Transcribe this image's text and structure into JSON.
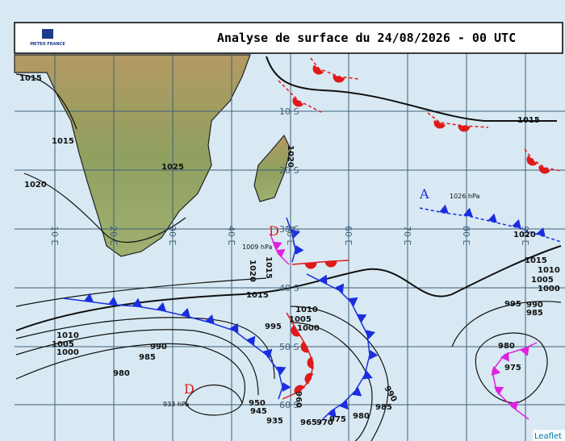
{
  "header": {
    "title": "Analyse de surface du 24/08/2026 - 00 UTC",
    "logo": "METEO FRANCE"
  },
  "grid": {
    "latitudes": [
      "10 S",
      "20 S",
      "30 S",
      "40 S",
      "50 S",
      "60 S"
    ],
    "longitudes": [
      "10 E",
      "20 E",
      "30 E",
      "40 E",
      "50 E",
      "60 E",
      "70 E",
      "80 E",
      "90 E"
    ]
  },
  "isobar_labels": [
    "1015",
    "1015",
    "1020",
    "1025",
    "1020",
    "1015",
    "1020",
    "1015",
    "1010",
    "1005",
    "1000",
    "1015",
    "1010",
    "1005",
    "1000",
    "995",
    "1010",
    "1005",
    "1000",
    "990",
    "985",
    "980",
    "995",
    "990",
    "985",
    "980",
    "975",
    "960",
    "950",
    "945",
    "935",
    "965",
    "970",
    "975",
    "980",
    "985",
    "990",
    "1020",
    "1015"
  ],
  "centers": [
    {
      "symbol": "A",
      "pressure": "1026 hPa"
    },
    {
      "symbol": "D",
      "pressure": "1009 hPa"
    },
    {
      "symbol": "D",
      "pressure": "933 hPa"
    }
  ],
  "footer": {
    "attribution": "Leaflet"
  }
}
